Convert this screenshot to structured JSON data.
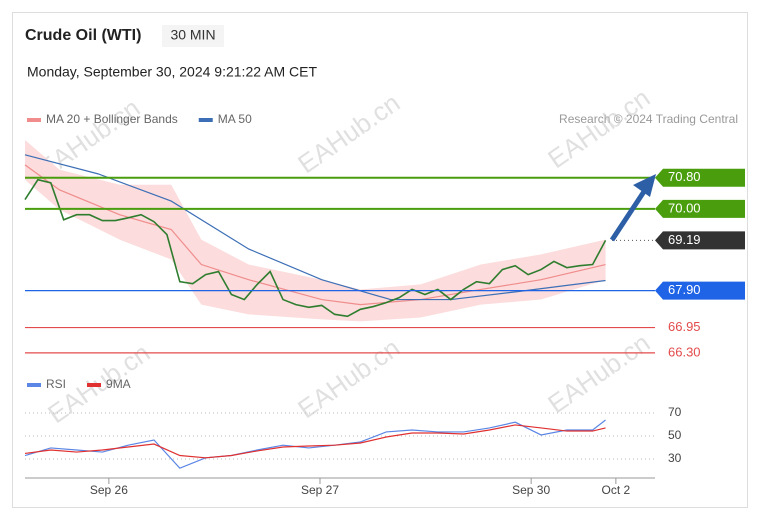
{
  "title": "Crude Oil (WTI)",
  "timeframe": "30 MIN",
  "date": "Monday, September 30, 2024 9:21:22 AM CET",
  "credit": "Research © 2024 Trading Central",
  "watermark": "EAHub.cn",
  "chart_data": [
    {
      "type": "line",
      "xlim": [
        0,
        146.5
      ],
      "ylim": [
        65.86,
        71.77
      ],
      "levels": [
        {
          "value": 70.8,
          "label": "70.80",
          "color": "#4a9e0e",
          "boxed": true,
          "dotted": false
        },
        {
          "value": 70.0,
          "label": "70.00",
          "color": "#4a9e0e",
          "boxed": true,
          "dotted": false
        },
        {
          "value": 69.19,
          "label": "69.19",
          "color": "#333333",
          "boxed": true,
          "dotted": true
        },
        {
          "value": 67.9,
          "label": "67.90",
          "color": "#1f63e6",
          "boxed": true,
          "dotted": false
        },
        {
          "value": 66.95,
          "label": "66.95",
          "color": "#e34b4b",
          "boxed": false,
          "dotted": false
        },
        {
          "value": 66.3,
          "label": "66.30",
          "color": "#e34b4b",
          "boxed": false,
          "dotted": false
        }
      ],
      "series": [
        {
          "name": "MA 20 + Bollinger Bands",
          "color": "#f08c8c",
          "band_color": "#fcdcdc",
          "x": [
            0,
            8,
            22,
            34,
            41,
            52,
            69,
            78,
            92,
            106,
            120,
            135
          ],
          "values": [
            71.13,
            70.49,
            69.85,
            69.47,
            68.57,
            68.18,
            67.67,
            67.54,
            67.67,
            67.93,
            68.18,
            68.57
          ],
          "upper": [
            71.77,
            71.01,
            70.62,
            70.62,
            69.21,
            68.57,
            68.18,
            67.93,
            68.06,
            68.57,
            68.83,
            69.21
          ],
          "lower": [
            70.75,
            69.98,
            69.21,
            68.7,
            67.54,
            67.29,
            67.16,
            67.11,
            67.21,
            67.54,
            67.67,
            68.18
          ]
        },
        {
          "name": "MA 50",
          "color": "#3d6fb6",
          "x": [
            0,
            17,
            34,
            52,
            69,
            85,
            99,
            115,
            135
          ],
          "values": [
            71.39,
            70.9,
            70.2,
            68.97,
            68.18,
            67.67,
            67.67,
            67.88,
            68.16
          ]
        },
        {
          "color": "#2f7d2f",
          "x": [
            0,
            3,
            6,
            9,
            12,
            15,
            18,
            21,
            24,
            27,
            30,
            33,
            36,
            39,
            42,
            45,
            48,
            51,
            54,
            57,
            60,
            63,
            66,
            69,
            72,
            75,
            78,
            81,
            84,
            87,
            90,
            93,
            96,
            99,
            102,
            105,
            108,
            111,
            114,
            117,
            120,
            123,
            126,
            129,
            132,
            135
          ],
          "values": [
            70.24,
            70.75,
            70.67,
            69.72,
            69.85,
            69.85,
            69.7,
            69.7,
            69.77,
            69.85,
            69.67,
            69.34,
            68.13,
            68.08,
            68.31,
            68.39,
            67.8,
            67.67,
            68.06,
            68.39,
            67.67,
            67.54,
            67.47,
            67.52,
            67.29,
            67.24,
            67.42,
            67.49,
            67.59,
            67.72,
            67.93,
            67.8,
            67.93,
            67.67,
            67.93,
            68.13,
            68.08,
            68.44,
            68.54,
            68.31,
            68.44,
            68.65,
            68.49,
            68.54,
            68.57,
            69.19
          ]
        }
      ]
    },
    {
      "type": "line",
      "xlim": [
        0,
        146.5
      ],
      "ylim": [
        20.4,
        81.3
      ],
      "yticks": [
        70,
        50,
        30
      ],
      "xticks": [
        {
          "value": 19.5,
          "label": "Sep 26"
        },
        {
          "value": 68.6,
          "label": "Sep 27"
        },
        {
          "value": 117.7,
          "label": "Sep 30"
        },
        {
          "value": 137.4,
          "label": "Oct 2"
        }
      ],
      "series": [
        {
          "name": "RSI",
          "color": "#5b86e5",
          "x": [
            0,
            6,
            12,
            18,
            24,
            30,
            36,
            42,
            48,
            54,
            60,
            66,
            72,
            78,
            84,
            90,
            96,
            102,
            108,
            114,
            120,
            126,
            132,
            135
          ],
          "values": [
            33,
            39.6,
            37.8,
            36,
            42,
            46.5,
            22,
            31,
            33,
            37.8,
            42,
            39.6,
            42,
            44.8,
            53.5,
            55.2,
            53.5,
            53.5,
            57,
            62,
            50.9,
            55.2,
            55.2,
            63.9
          ]
        },
        {
          "name": "9MA",
          "color": "#e03030",
          "x": [
            0,
            6,
            12,
            18,
            24,
            30,
            36,
            42,
            48,
            54,
            60,
            66,
            72,
            78,
            84,
            90,
            96,
            102,
            108,
            114,
            120,
            126,
            132,
            135
          ],
          "values": [
            34.8,
            37.8,
            36,
            37.8,
            40.4,
            43,
            33,
            31,
            33,
            37,
            40.4,
            41.3,
            42,
            43.9,
            49.1,
            52.6,
            52.6,
            51.7,
            55.2,
            59.6,
            57,
            54.3,
            54.3,
            57
          ]
        }
      ]
    }
  ]
}
